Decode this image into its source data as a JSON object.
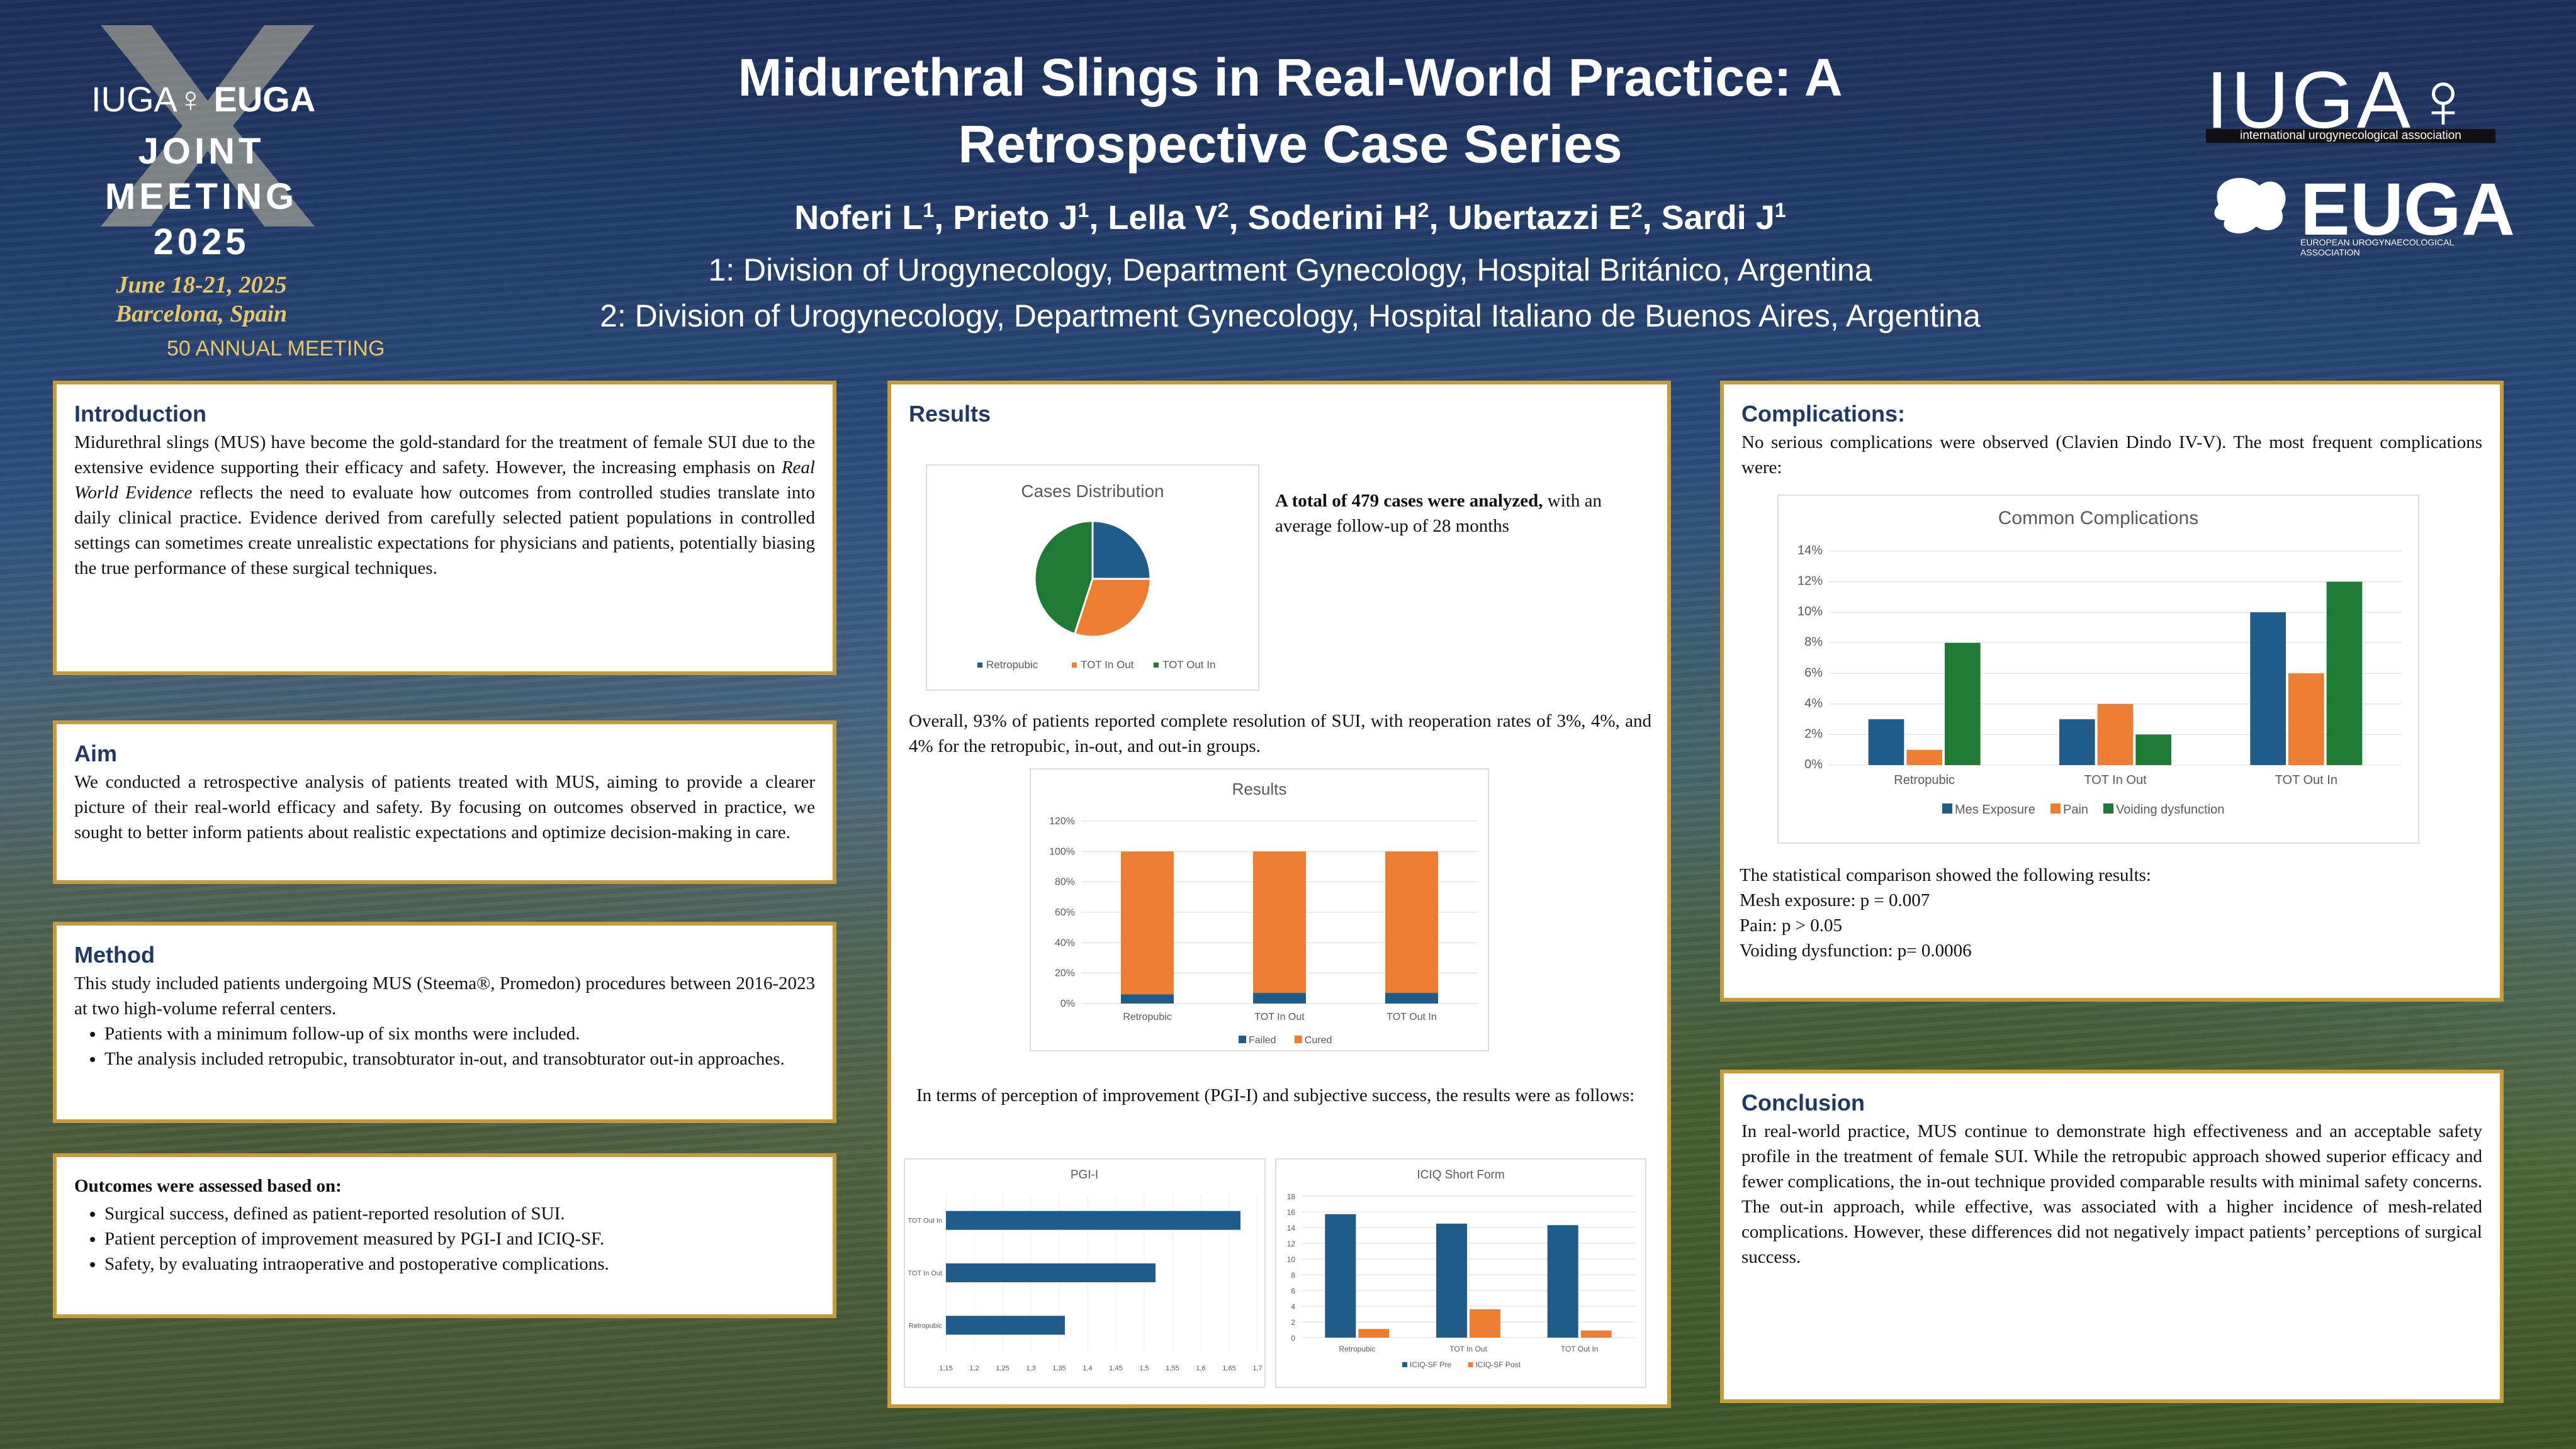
{
  "header": {
    "title": "Midurethral Slings in Real-World Practice: A Retrospective Case Series",
    "authors": [
      {
        "name": "Noferi L",
        "sup": "1"
      },
      {
        "name": "Prieto J",
        "sup": "1"
      },
      {
        "name": "Lella V",
        "sup": "2"
      },
      {
        "name": "Soderini H",
        "sup": "2"
      },
      {
        "name": "Ubertazzi E",
        "sup": "2"
      },
      {
        "name": "Sardi J",
        "sup": "1"
      }
    ],
    "affiliation1": "1: Division of Urogynecology, Department Gynecology, Hospital Británico, Argentina",
    "affiliation2": "2: Division of Urogynecology, Department Gynecology, Hospital Italiano de Buenos Aires, Argentina"
  },
  "logos": {
    "left_brand": "IUGA",
    "left_brand2": "EUGA",
    "meeting": "JOINT MEETING",
    "year": "2025",
    "dates": "June 18-21, 2025",
    "place": "Barcelona, Spain",
    "anniversary": "50 ANNUAL MEETING",
    "right_iuga": "IUGA",
    "right_iuga_sub": "international urogynecological association",
    "right_euga": "EUGA",
    "right_euga_sub": "EUROPEAN UROGYNAECOLOGICAL ASSOCIATION"
  },
  "introduction": {
    "heading": "Introduction",
    "text_before": "Midurethral slings (MUS) have become the gold-standard for the treatment of female SUI due to the extensive evidence supporting their efficacy and safety. However, the increasing emphasis on ",
    "emph": "Real World Evidence",
    "text_after": " reflects the need to evaluate how outcomes from controlled studies translate into daily clinical practice. Evidence derived from carefully selected patient populations in controlled settings can sometimes create unrealistic expectations for physicians and patients, potentially biasing the true performance of these surgical techniques."
  },
  "aim": {
    "heading": "Aim",
    "text": "We conducted a retrospective analysis of patients treated with MUS, aiming to provide a clearer picture of their real-world efficacy and safety. By focusing on outcomes observed in practice, we sought to better inform patients about realistic expectations and optimize decision-making in care."
  },
  "method": {
    "heading": "Method",
    "text": "This study included patients undergoing MUS (Steema®, Promedon) procedures between 2016-2023 at two high-volume referral centers.",
    "bullets": [
      "Patients with a minimum follow-up of six months were included.",
      "The analysis included retropubic, transobturator in-out, and transobturator out-in approaches."
    ]
  },
  "outcomes": {
    "heading": "Outcomes were assessed based on:",
    "bullets": [
      "Surgical success, defined as patient-reported resolution of SUI.",
      "Patient perception of improvement measured by PGI-I and ICIQ-SF.",
      "Safety, by evaluating intraoperative and postoperative complications."
    ]
  },
  "results": {
    "heading": "Results",
    "total_bold": "A total of 479 cases were analyzed,",
    "total_rest": " with an average follow-up of 28 months",
    "overall": "Overall, 93% of patients reported complete resolution of SUI, with reoperation rates of 3%, 4%, and 4% for the retropubic, in-out, and out-in groups.",
    "perception": "In terms of perception of improvement (PGI-I) and subjective success, the results were as follows:"
  },
  "complications": {
    "heading": "Complications:",
    "text": "No serious complications were observed (Clavien Dindo IV-V). The most frequent complications were:",
    "stats_intro": "The statistical comparison showed the following results:",
    "stats": [
      "Mesh exposure: p = 0.007",
      "Pain: p > 0.05",
      "Voiding dysfunction: p= 0.0006"
    ]
  },
  "conclusion": {
    "heading": "Conclusion",
    "text": "In real-world practice, MUS continue to demonstrate high effectiveness and an acceptable safety profile in the treatment of female SUI. While the retropubic approach showed superior efficacy and fewer complications, the in-out technique provided comparable results with minimal safety concerns. The out-in approach, while effective, was associated with a higher incidence of mesh-related complications. However, these differences did not negatively impact patients’ perceptions of surgical success."
  },
  "colors": {
    "blue": "#1f5c8a",
    "orange": "#ed7d31",
    "green": "#1e7a35",
    "gold": "#c79a3b",
    "heading": "#1f3864"
  },
  "chart_data": [
    {
      "id": "cases",
      "type": "pie",
      "title": "Cases Distribution",
      "categories": [
        "Retropubic",
        "TOT In Out",
        "TOT Out In"
      ],
      "values": [
        25,
        30,
        45
      ],
      "colors": [
        "#1f5c8a",
        "#ed7d31",
        "#1e7a35"
      ],
      "legend": "bottom"
    },
    {
      "id": "results",
      "type": "bar",
      "stacked": true,
      "title": "Results",
      "categories": [
        "Retropubic",
        "TOT In Out",
        "TOT Out In"
      ],
      "series": [
        {
          "name": "Failed",
          "values": [
            6,
            7,
            7
          ],
          "color": "#1f5c8a"
        },
        {
          "name": "Cured",
          "values": [
            94,
            93,
            93
          ],
          "color": "#ed7d31"
        }
      ],
      "yticks": [
        "0%",
        "20%",
        "40%",
        "60%",
        "80%",
        "100%",
        "120%"
      ],
      "ylim": [
        0,
        120
      ],
      "legend": "bottom"
    },
    {
      "id": "complications",
      "type": "bar",
      "title": "Common Complications",
      "categories": [
        "Retropubic",
        "TOT In Out",
        "TOT Out In"
      ],
      "series": [
        {
          "name": "Mes Exposure",
          "values": [
            3,
            3,
            10
          ],
          "color": "#1f5c8a"
        },
        {
          "name": "Pain",
          "values": [
            1,
            4,
            6
          ],
          "color": "#ed7d31"
        },
        {
          "name": "Voiding dysfunction",
          "values": [
            8,
            2,
            12
          ],
          "color": "#1e7a35"
        }
      ],
      "yticks": [
        "0%",
        "2%",
        "4%",
        "6%",
        "8%",
        "10%",
        "12%",
        "14%"
      ],
      "ylim": [
        0,
        14
      ],
      "legend": "bottom"
    },
    {
      "id": "pgi",
      "type": "bar",
      "orientation": "horizontal",
      "title": "PGI-I",
      "categories": [
        "TOT Out In",
        "TOT In Out",
        "Retropubic"
      ],
      "values": [
        1.67,
        1.52,
        1.36
      ],
      "color": "#1f5c8a",
      "xticks": [
        "1,15",
        "1,2",
        "1,25",
        "1,3",
        "1,35",
        "1,4",
        "1,45",
        "1,5",
        "1,55",
        "1,6",
        "1,65",
        "1,7"
      ],
      "xlim": [
        1.15,
        1.7
      ]
    },
    {
      "id": "iciq",
      "type": "bar",
      "title": "ICIQ Short Form",
      "categories": [
        "Retropubic",
        "TOT In Out",
        "TOT Out In"
      ],
      "series": [
        {
          "name": "ICIQ-SF Pre",
          "values": [
            15.7,
            14.5,
            14.3
          ],
          "color": "#1f5c8a"
        },
        {
          "name": "ICIQ-SF Post",
          "values": [
            1.1,
            3.6,
            0.9
          ],
          "color": "#ed7d31"
        }
      ],
      "yticks": [
        "0",
        "2",
        "4",
        "6",
        "8",
        "10",
        "12",
        "14",
        "16",
        "18"
      ],
      "ylim": [
        0,
        18
      ],
      "legend": "bottom"
    }
  ]
}
